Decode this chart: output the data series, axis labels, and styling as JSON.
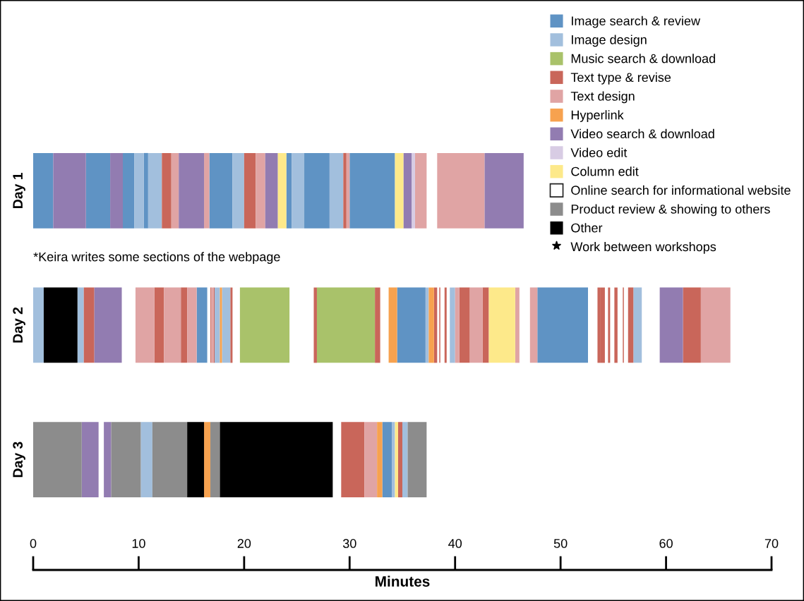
{
  "chart_data": {
    "type": "bar",
    "orientation": "horizontal",
    "categories": [
      "Day 1",
      "Day 2",
      "Day 3"
    ],
    "xlabel": "Minutes",
    "xlim": [
      0,
      70
    ],
    "xticks": [
      0,
      10,
      20,
      30,
      40,
      50,
      60,
      70
    ],
    "legend": "top right",
    "annotations": [
      "*Keira writes some sections of the webpage"
    ],
    "series": [
      {
        "name": "Image search & review",
        "color": "#5f93c4",
        "values": [
          1.9,
          null,
          null
        ],
        "base": [
          0,
          null,
          null
        ]
      },
      {
        "color": "#5f93c4",
        "values": [
          2.3,
          null,
          null
        ],
        "base": [
          5.0,
          null,
          null
        ]
      },
      {
        "color": "#5f93c4",
        "values": [
          1.1,
          null,
          null
        ],
        "base": [
          8.5,
          null,
          null
        ]
      },
      {
        "color": "#5f93c4",
        "values": [
          0.4,
          null,
          null
        ],
        "base": [
          10.5,
          null,
          null
        ]
      },
      {
        "color": "#5f93c4",
        "values": [
          2.2,
          null,
          null
        ],
        "base": [
          16.7,
          null,
          null
        ]
      },
      {
        "color": "#5f93c4",
        "values": [
          0.5,
          null,
          null
        ],
        "base": [
          24.0,
          null,
          null
        ]
      },
      {
        "color": "#5f93c4",
        "values": [
          2.4,
          null,
          null
        ],
        "base": [
          25.7,
          null,
          null
        ]
      },
      {
        "color": "#5f93c4",
        "values": [
          4.3,
          null,
          null
        ],
        "base": [
          30.0,
          null,
          null
        ]
      },
      {
        "color": "#5f93c4",
        "values": [
          null,
          1.0,
          0.9
        ],
        "base": [
          null,
          15.5,
          33.1
        ]
      },
      {
        "color": "#5f93c4",
        "values": [
          null,
          2.7,
          null
        ],
        "base": [
          null,
          34.5,
          null
        ]
      },
      {
        "color": "#5f93c4",
        "values": [
          null,
          4.8,
          null
        ],
        "base": [
          null,
          47.8,
          null
        ]
      },
      {
        "name": "Image design",
        "color": "#a2bfdd",
        "values": [
          0.9,
          1.0,
          1.1
        ],
        "base": [
          9.6,
          0,
          10.2
        ]
      },
      {
        "color": "#a2bfdd",
        "values": [
          1.3,
          0.6,
          0.3
        ],
        "base": [
          10.9,
          4.2,
          34.0
        ]
      },
      {
        "color": "#a2bfdd",
        "values": [
          1.1,
          0.5,
          0.5
        ],
        "base": [
          18.9,
          17.2,
          35.0
        ]
      },
      {
        "color": "#a2bfdd",
        "values": [
          1.2,
          0.8,
          null
        ],
        "base": [
          24.5,
          17.9,
          null
        ]
      },
      {
        "color": "#a2bfdd",
        "values": [
          1.3,
          0.3,
          null
        ],
        "base": [
          28.1,
          37.2,
          null
        ]
      },
      {
        "color": "#a2bfdd",
        "values": [
          null,
          0.5,
          null
        ],
        "base": [
          null,
          39.5,
          null
        ]
      },
      {
        "color": "#a2bfdd",
        "values": [
          null,
          0.8,
          null
        ],
        "base": [
          null,
          56.9,
          null
        ]
      },
      {
        "name": "Music search & download",
        "color": "#a9c26a",
        "values": [
          null,
          4.7,
          null
        ],
        "base": [
          null,
          19.6,
          null
        ]
      },
      {
        "color": "#a9c26a",
        "values": [
          null,
          5.5,
          null
        ],
        "base": [
          null,
          26.9,
          null
        ]
      },
      {
        "name": "Text type & revise",
        "color": "#c9665a",
        "values": [
          0.9,
          1.0,
          2.2
        ],
        "base": [
          12.2,
          4.8,
          29.2
        ]
      },
      {
        "color": "#c9665a",
        "values": [
          1.1,
          0.9,
          0.4
        ],
        "base": [
          20.0,
          11.5,
          34.6
        ]
      },
      {
        "color": "#c9665a",
        "values": [
          0.3,
          0.6,
          null
        ],
        "base": [
          29.4,
          14.0,
          null
        ]
      },
      {
        "color": "#c9665a",
        "values": [
          null,
          0.1,
          null
        ],
        "base": [
          null,
          16.8,
          null
        ]
      },
      {
        "color": "#c9665a",
        "values": [
          null,
          0.1,
          null
        ],
        "base": [
          null,
          17.1,
          null
        ]
      },
      {
        "color": "#c9665a",
        "values": [
          null,
          0.2,
          null
        ],
        "base": [
          null,
          18.7,
          null
        ]
      },
      {
        "color": "#c9665a",
        "values": [
          null,
          0.3,
          null
        ],
        "base": [
          null,
          26.6,
          null
        ]
      },
      {
        "color": "#c9665a",
        "values": [
          null,
          0.5,
          null
        ],
        "base": [
          null,
          32.4,
          null
        ]
      },
      {
        "color": "#c9665a",
        "values": [
          null,
          0.3,
          null
        ],
        "base": [
          null,
          38.0,
          null
        ]
      },
      {
        "color": "#c9665a",
        "values": [
          null,
          0.1,
          null
        ],
        "base": [
          null,
          38.5,
          null
        ]
      },
      {
        "color": "#c9665a",
        "values": [
          null,
          0.2,
          null
        ],
        "base": [
          null,
          39.0,
          null
        ]
      },
      {
        "color": "#c9665a",
        "values": [
          null,
          1.0,
          null
        ],
        "base": [
          null,
          40.4,
          null
        ]
      },
      {
        "color": "#c9665a",
        "values": [
          null,
          0.6,
          null
        ],
        "base": [
          null,
          42.6,
          null
        ]
      },
      {
        "color": "#c9665a",
        "values": [
          null,
          0.3,
          null
        ],
        "base": [
          null,
          53.5,
          null
        ]
      },
      {
        "color": "#c9665a",
        "values": [
          null,
          0.4,
          null
        ],
        "base": [
          null,
          53.8,
          null
        ]
      },
      {
        "color": "#c9665a",
        "values": [
          null,
          0.2,
          null
        ],
        "base": [
          null,
          54.5,
          null
        ]
      },
      {
        "color": "#c9665a",
        "values": [
          null,
          0.3,
          null
        ],
        "base": [
          null,
          55.1,
          null
        ]
      },
      {
        "color": "#c9665a",
        "values": [
          null,
          0.1,
          null
        ],
        "base": [
          null,
          55.9,
          null
        ]
      },
      {
        "color": "#c9665a",
        "values": [
          null,
          0.5,
          null
        ],
        "base": [
          null,
          56.4,
          null
        ]
      },
      {
        "color": "#c9665a",
        "values": [
          null,
          1.7,
          null
        ],
        "base": [
          null,
          61.6,
          null
        ]
      },
      {
        "name": "Text design",
        "color": "#e0a4a4",
        "values": [
          0.7,
          1.8,
          1.2
        ],
        "base": [
          13.1,
          9.7,
          31.4
        ]
      },
      {
        "color": "#e0a4a4",
        "values": [
          0.5,
          1.6,
          null
        ],
        "base": [
          16.2,
          12.4,
          null
        ]
      },
      {
        "color": "#e0a4a4",
        "values": [
          0.9,
          0.9,
          null
        ],
        "base": [
          21.1,
          14.6,
          null
        ]
      },
      {
        "color": "#e0a4a4",
        "values": [
          0.3,
          0.2,
          null
        ],
        "base": [
          29.7,
          16.9,
          null
        ]
      },
      {
        "color": "#e0a4a4",
        "values": [
          1.1,
          0.4,
          null
        ],
        "base": [
          36.2,
          40.0,
          null
        ]
      },
      {
        "color": "#e0a4a4",
        "values": [
          4.5,
          1.2,
          null
        ],
        "base": [
          38.3,
          41.4,
          null
        ]
      },
      {
        "color": "#e0a4a4",
        "values": [
          null,
          0.4,
          null
        ],
        "base": [
          null,
          45.7,
          null
        ]
      },
      {
        "color": "#e0a4a4",
        "values": [
          null,
          0.7,
          null
        ],
        "base": [
          null,
          47.1,
          null
        ]
      },
      {
        "color": "#e0a4a4",
        "values": [
          null,
          2.8,
          null
        ],
        "base": [
          null,
          63.3,
          null
        ]
      },
      {
        "name": "Hyperlink",
        "color": "#f7a24f",
        "values": [
          null,
          0.2,
          0.6
        ],
        "base": [
          null,
          17.7,
          16.2
        ]
      },
      {
        "color": "#f7a24f",
        "values": [
          null,
          0.8,
          0.5
        ],
        "base": [
          null,
          33.7,
          32.6
        ]
      },
      {
        "color": "#f7a24f",
        "values": [
          null,
          0.5,
          null
        ],
        "base": [
          null,
          37.5,
          null
        ]
      },
      {
        "name": "Video search & download",
        "color": "#927cb1",
        "values": [
          3.1,
          2.6,
          1.6
        ],
        "base": [
          1.9,
          5.8,
          4.6
        ]
      },
      {
        "color": "#927cb1",
        "values": [
          1.2,
          2.2,
          0.7
        ],
        "base": [
          7.3,
          59.4,
          6.7
        ]
      },
      {
        "color": "#927cb1",
        "values": [
          2.4,
          null,
          null
        ],
        "base": [
          13.8,
          null,
          null
        ]
      },
      {
        "color": "#927cb1",
        "values": [
          1.2,
          null,
          null
        ],
        "base": [
          22.0,
          null,
          null
        ]
      },
      {
        "color": "#927cb1",
        "values": [
          0.8,
          null,
          null
        ],
        "base": [
          35.1,
          null,
          null
        ]
      },
      {
        "color": "#927cb1",
        "values": [
          3.7,
          null,
          null
        ],
        "base": [
          42.8,
          null,
          null
        ]
      },
      {
        "name": "Video edit",
        "color": "#d8cce4",
        "values": [
          0.3,
          null,
          null
        ],
        "base": [
          35.9,
          null,
          null
        ]
      },
      {
        "name": "Column edit",
        "color": "#fde98a",
        "values": [
          0.8,
          2.5,
          0.3
        ],
        "base": [
          23.2,
          43.2,
          34.3
        ]
      },
      {
        "color": "#fde98a",
        "values": [
          0.8,
          null,
          null
        ],
        "base": [
          34.3,
          null,
          null
        ]
      },
      {
        "name": "Online search for informational website",
        "color": "#ffffff",
        "values": [
          null,
          null,
          null
        ],
        "base": [
          null,
          null,
          null
        ]
      },
      {
        "name": "Product review & showing to others",
        "color": "#8c8c8c",
        "values": [
          null,
          null,
          4.6
        ],
        "base": [
          null,
          null,
          0
        ]
      },
      {
        "color": "#8c8c8c",
        "values": [
          null,
          null,
          2.8
        ],
        "base": [
          null,
          null,
          7.4
        ]
      },
      {
        "color": "#8c8c8c",
        "values": [
          null,
          null,
          3.3
        ],
        "base": [
          null,
          null,
          11.3
        ]
      },
      {
        "color": "#8c8c8c",
        "values": [
          null,
          null,
          0.9
        ],
        "base": [
          null,
          null,
          16.8
        ]
      },
      {
        "color": "#8c8c8c",
        "values": [
          null,
          null,
          1.8
        ],
        "base": [
          null,
          null,
          35.5
        ]
      },
      {
        "name": "Other",
        "color": "#000000",
        "values": [
          null,
          3.2,
          1.6
        ],
        "base": [
          null,
          1.0,
          14.6
        ]
      },
      {
        "color": "#000000",
        "values": [
          null,
          null,
          10.7
        ],
        "base": [
          null,
          null,
          17.7
        ]
      },
      {
        "name": "Work between workshops",
        "type": "scatter",
        "marker": "star",
        "color": "#000000",
        "values": [
          null,
          null,
          null
        ]
      }
    ]
  }
}
